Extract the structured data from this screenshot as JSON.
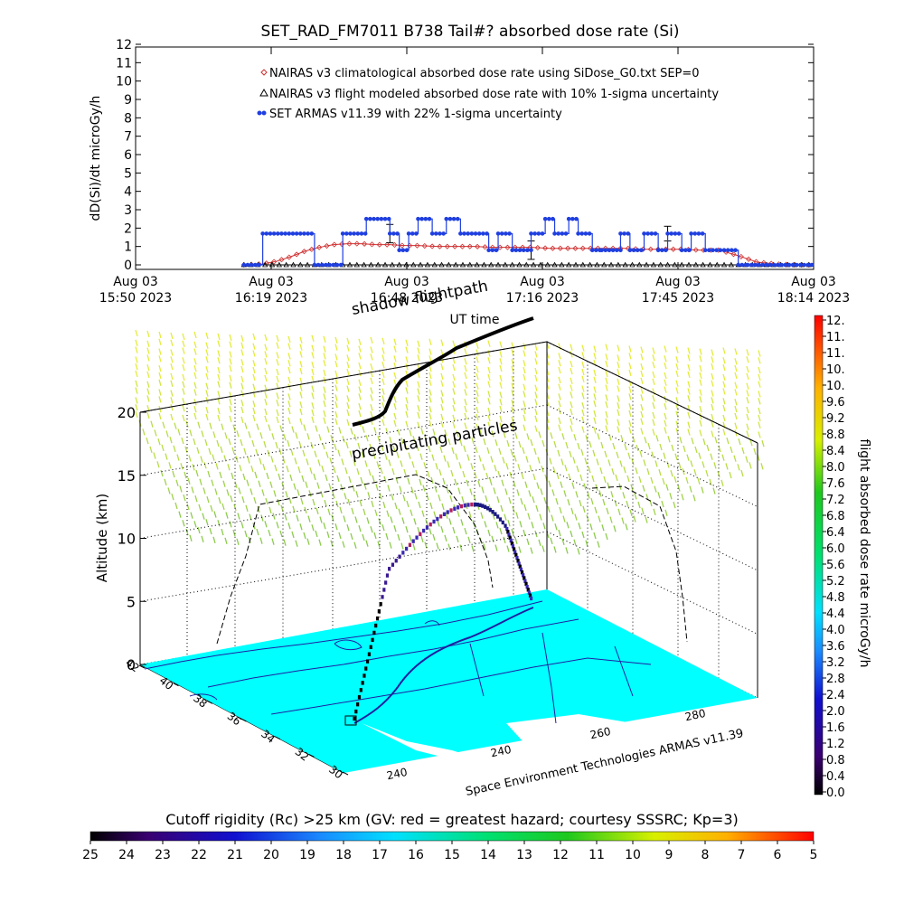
{
  "title": "SET_RAD_FM7011  B738 Tail#? absorbed dose rate (Si)",
  "chart_data": [
    {
      "type": "line",
      "title": "SET_RAD_FM7011  B738 Tail#? absorbed dose rate (Si)",
      "xlabel": "UT time",
      "ylabel": "dD(Si)/dt microGy/h",
      "ylim": [
        0,
        12
      ],
      "y_ticks": [
        "0",
        "1",
        "2",
        "3",
        "4",
        "5",
        "6",
        "7",
        "8",
        "9",
        "10",
        "11",
        "12"
      ],
      "x_ticks": [
        {
          "date": "Aug 03",
          "time": "15:50 2023"
        },
        {
          "date": "Aug 03",
          "time": "16:19 2023"
        },
        {
          "date": "Aug 03",
          "time": "16:48 2023"
        },
        {
          "date": "Aug 03",
          "time": "17:16 2023"
        },
        {
          "date": "Aug 03",
          "time": "17:45 2023"
        },
        {
          "date": "Aug 03",
          "time": "18:14 2023"
        }
      ],
      "x_range_minutes": [
        0,
        144
      ],
      "legend": [
        {
          "name": "NAIRAS v3 climatological absorbed dose rate using SiDose_G0.txt SEP=0",
          "marker": "diamond",
          "color": "#d03030"
        },
        {
          "name": "NAIRAS v3 flight modeled absorbed dose rate with 10% 1-sigma uncertainty",
          "marker": "triangle",
          "color": "#000000"
        },
        {
          "name": "SET ARMAS v11.39 with 22% 1-sigma uncertainty",
          "marker": "dot",
          "color": "#1f3fe0"
        }
      ],
      "legend_position": "top",
      "series": [
        {
          "name": "NAIRAS v3 climatological absorbed dose rate using SiDose_G0.txt SEP=0",
          "x": [
            23,
            27,
            30,
            33,
            36,
            39,
            42,
            45,
            48,
            51,
            54,
            57,
            60,
            64,
            68,
            72,
            76,
            80,
            84,
            88,
            92,
            96,
            100,
            104,
            108,
            112,
            116,
            120,
            124,
            128,
            132,
            136,
            140,
            144
          ],
          "y": [
            0,
            0.05,
            0.2,
            0.45,
            0.75,
            0.95,
            1.1,
            1.15,
            1.15,
            1.1,
            1.1,
            1.05,
            1.05,
            1.0,
            1.0,
            1.0,
            0.95,
            0.95,
            0.95,
            0.9,
            0.9,
            0.9,
            0.9,
            0.9,
            0.85,
            0.85,
            0.85,
            0.8,
            0.8,
            0.5,
            0.15,
            0.05,
            0,
            0
          ]
        },
        {
          "name": "NAIRAS v3 flight modeled absorbed dose rate with 10% 1-sigma uncertainty",
          "x": [
            23,
            26,
            29,
            32,
            35,
            38,
            41,
            44,
            47,
            50,
            53,
            56,
            59,
            62,
            65,
            68,
            71,
            74,
            77,
            80,
            83,
            86,
            89,
            92,
            95,
            98,
            101,
            104,
            107,
            110,
            113,
            116,
            119,
            122,
            125,
            128,
            131,
            134,
            137,
            140,
            144
          ],
          "y": [
            0,
            0,
            0,
            0,
            0,
            0,
            0,
            0,
            0,
            0,
            0,
            0,
            0,
            0,
            0,
            0,
            0,
            0,
            0,
            0,
            0,
            0,
            0,
            0,
            0,
            0,
            0,
            0,
            0,
            0,
            0,
            0,
            0,
            0,
            0,
            0,
            0,
            0,
            0,
            0,
            0
          ],
          "error_bars": [
            {
              "x": 54,
              "y": 1.7,
              "err": 0.5
            },
            {
              "x": 84,
              "y": 0.8,
              "err": 0.5
            },
            {
              "x": 113,
              "y": 1.7,
              "err": 0.4
            }
          ]
        },
        {
          "name": "SET ARMAS v11.39 with 22% 1-sigma uncertainty",
          "x": [
            23,
            27,
            27,
            38,
            38,
            44,
            44,
            49,
            49,
            54,
            54,
            56,
            56,
            58,
            58,
            60,
            60,
            63,
            63,
            66,
            66,
            69,
            69,
            75,
            75,
            77,
            77,
            80,
            80,
            84,
            84,
            87,
            87,
            89,
            89,
            92,
            92,
            94,
            94,
            97,
            97,
            99,
            99,
            103,
            103,
            105,
            105,
            108,
            108,
            111,
            111,
            113,
            113,
            116,
            116,
            118,
            118,
            121,
            121,
            128,
            128,
            130,
            144
          ],
          "y": [
            0,
            0,
            1.7,
            1.7,
            0,
            0,
            1.7,
            1.7,
            2.5,
            2.5,
            1.7,
            1.7,
            0.8,
            0.8,
            1.7,
            1.7,
            2.5,
            2.5,
            1.7,
            1.7,
            2.5,
            2.5,
            1.7,
            1.7,
            0.8,
            0.8,
            1.7,
            1.7,
            0.8,
            0.8,
            1.7,
            1.7,
            2.5,
            2.5,
            1.7,
            1.7,
            2.5,
            2.5,
            1.7,
            1.7,
            0.8,
            0.8,
            0.8,
            0.8,
            1.7,
            1.7,
            0.8,
            0.8,
            1.7,
            1.7,
            0.8,
            0.8,
            1.7,
            1.7,
            0.8,
            0.8,
            1.7,
            1.7,
            0.8,
            0.8,
            0,
            0,
            0
          ]
        }
      ]
    },
    {
      "type": "scatter",
      "title": "",
      "zlabel": "Altitude (km)",
      "z_ticks": [
        "0",
        "5",
        "10",
        "15",
        "20"
      ],
      "zlim": [
        0,
        20
      ],
      "lat_ticks": [
        "42",
        "40",
        "38",
        "36",
        "34",
        "32",
        "30"
      ],
      "lon_ticks": [
        "240",
        "240",
        "240",
        "260",
        "280"
      ],
      "annotations": [
        "shadow flightpath",
        "precipitating particles",
        "Space Environment Technologies ARMAS v11.39"
      ],
      "colorbar": {
        "label": "flight absorbed dose rate microGy/h",
        "ticks": [
          "12.",
          "11.",
          "11.",
          "10.",
          "10.",
          "9.6",
          "9.2",
          "8.8",
          "8.4",
          "8.0",
          "7.6",
          "7.2",
          "6.8",
          "6.4",
          "6.0",
          "5.6",
          "5.2",
          "4.8",
          "4.4",
          "4.0",
          "3.6",
          "3.2",
          "2.8",
          "2.4",
          "2.0",
          "1.6",
          "1.2",
          "0.8",
          "0.4",
          "0.0"
        ],
        "range": [
          0,
          12
        ]
      },
      "flight_track_altitude_km": [
        0.5,
        3,
        6,
        8.5,
        10.5,
        11.2,
        11.6,
        11.9,
        11.9,
        11.7,
        11.3,
        10.2,
        8.5,
        6.5,
        5
      ]
    },
    {
      "type": "heatmap",
      "title": "Cutoff rigidity (Rc) >25 km (GV: red = greatest hazard; courtesy SSSRC; Kp=3)",
      "colorbar_ticks": [
        "25",
        "24",
        "23",
        "22",
        "21",
        "20",
        "19",
        "18",
        "17",
        "16",
        "15",
        "14",
        "13",
        "12",
        "11",
        "10",
        "9",
        "8",
        "7",
        "6",
        "5"
      ],
      "range": [
        25,
        5
      ]
    }
  ],
  "colors": {
    "claim_series": "#d03030",
    "model_series": "#000000",
    "armas_series": "#1f3fe0",
    "map_fill": "#00ffff",
    "precip_particles": "#c6e23a",
    "shadow_track": "#000000"
  }
}
